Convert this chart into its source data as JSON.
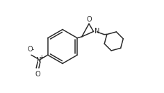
{
  "bg_color": "#ffffff",
  "line_color": "#2a2a2a",
  "line_width": 1.1,
  "text_color": "#2a2a2a",
  "font_size": 7.0,
  "figsize": [
    2.36,
    1.34
  ],
  "dpi": 100,
  "xlim": [
    0,
    10
  ],
  "ylim": [
    0,
    5.68
  ]
}
